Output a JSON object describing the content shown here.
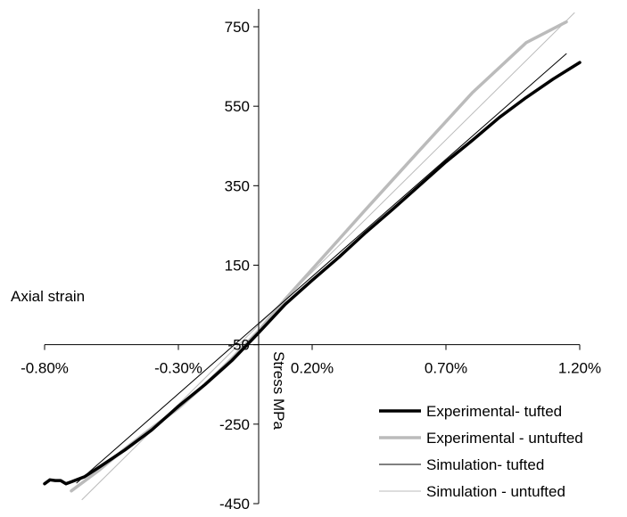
{
  "chart_data": {
    "type": "line",
    "xlabel": "Axial strain",
    "ylabel": "Stress MPa",
    "xlim": [
      -0.008,
      0.012
    ],
    "ylim": [
      -450,
      800
    ],
    "x_ticks": [
      -0.008,
      -0.003,
      0.002,
      0.007,
      0.012
    ],
    "x_tick_labels": [
      "-0.80%",
      "-0.30%",
      "0.20%",
      "0.70%",
      "1.20%"
    ],
    "y_ticks": [
      -450,
      -250,
      -50,
      150,
      350,
      550,
      750
    ],
    "y_tick_labels": [
      "-450",
      "-250",
      "-50",
      "150",
      "350",
      "550",
      "750"
    ],
    "grid": false,
    "legend_position": "bottom-right",
    "series": [
      {
        "name": "Experimental- tufted",
        "color": "#000000",
        "width": 3.5,
        "x": [
          -0.008,
          -0.0078,
          -0.0076,
          -0.0074,
          -0.0072,
          -0.007,
          -0.0065,
          -0.006,
          -0.005,
          -0.004,
          -0.003,
          -0.002,
          -0.001,
          0.0,
          0.001,
          0.002,
          0.003,
          0.004,
          0.005,
          0.006,
          0.007,
          0.008,
          0.009,
          0.01,
          0.011,
          0.012
        ],
        "y": [
          -400,
          -390,
          -392,
          -392,
          -400,
          -395,
          -382,
          -360,
          -315,
          -265,
          -205,
          -150,
          -90,
          -20,
          52,
          112,
          170,
          232,
          290,
          350,
          410,
          465,
          522,
          572,
          618,
          660
        ]
      },
      {
        "name": "Experimental - untufted",
        "color": "#bbbbbb",
        "width": 3.5,
        "x": [
          -0.007,
          -0.006,
          -0.005,
          -0.004,
          -0.003,
          -0.002,
          -0.001,
          0.0,
          0.001,
          0.002,
          0.004,
          0.006,
          0.008,
          0.01,
          0.0115
        ],
        "y": [
          -418,
          -368,
          -312,
          -260,
          -210,
          -150,
          -85,
          -15,
          65,
          140,
          290,
          438,
          585,
          710,
          762
        ]
      },
      {
        "name": "Simulation- tufted",
        "color": "#000000",
        "width": 1,
        "x": [
          -0.0068,
          0.0115
        ],
        "y": [
          -398,
          682
        ]
      },
      {
        "name": "Simulation - untufted",
        "color": "#bbbbbb",
        "width": 1,
        "x": [
          -0.0066,
          0.0118
        ],
        "y": [
          -440,
          785
        ]
      }
    ]
  }
}
